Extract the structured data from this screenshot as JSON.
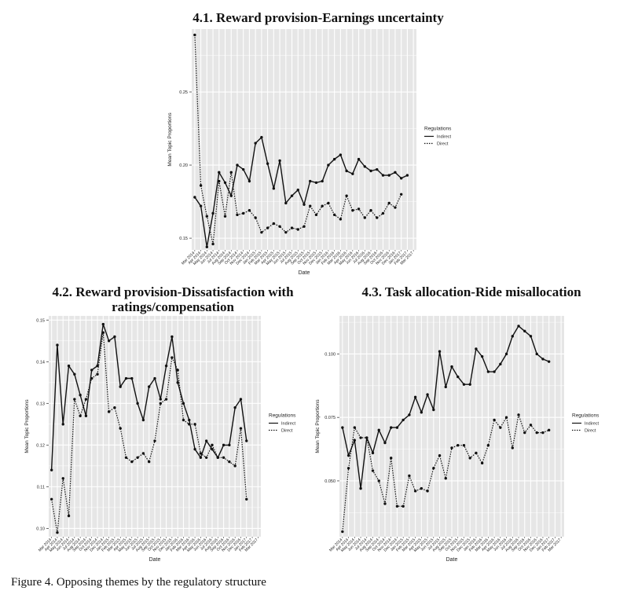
{
  "figure": {
    "caption": "Figure 4. Opposing themes by the regulatory structure"
  },
  "panels": [
    {
      "title_line1": "4.1. Reward provision-Earnings uncertainty",
      "title_line2": ""
    },
    {
      "title_line1": "4.2. Reward provision-Dissatisfaction with",
      "title_line2": "ratings/compensation"
    },
    {
      "title_line1": "4.3. Task allocation-Ride misallocation",
      "title_line2": ""
    }
  ],
  "colors": {
    "panel_bg": "#e6e6e6",
    "grid": "#ffffff",
    "line": "#111111",
    "text": "#222222"
  },
  "chart_data": [
    {
      "type": "line",
      "title": "4.1. Reward provision-Earnings uncertainty",
      "xlabel": "Date",
      "ylabel": "Mean Topic Proportions",
      "legend_title": "Regulations",
      "legend_position": "right",
      "grid": true,
      "ylim": [
        0.142,
        0.293
      ],
      "yticks": [
        0.15,
        0.2,
        0.25
      ],
      "ytick_labels": [
        "0.15",
        "0.20",
        "0.25"
      ],
      "categories": [
        "Mar 2014",
        "Apr 2014",
        "May 2014",
        "Jun 2014",
        "Jul 2014",
        "Aug 2014",
        "Sep 2014",
        "Oct 2014",
        "Nov 2014",
        "Dec 2014",
        "Jan 2015",
        "Feb 2015",
        "Mar 2015",
        "Apr 2015",
        "May 2015",
        "Jun 2015",
        "Jul 2015",
        "Aug 2015",
        "Sep 2015",
        "Oct 2015",
        "Nov 2015",
        "Dec 2015",
        "Jan 2016",
        "Feb 2016",
        "Mar 2016",
        "Apr 2016",
        "May 2016",
        "Jun 2016",
        "Jul 2016",
        "Aug 2016",
        "Sep 2016",
        "Oct 2016",
        "Nov 2016",
        "Dec 2016",
        "Jan 2017",
        "Feb 2017",
        "Mar 2017"
      ],
      "series": [
        {
          "name": "Indirect",
          "style": "solid",
          "values": [
            0.178,
            0.172,
            0.144,
            0.167,
            0.195,
            0.188,
            0.179,
            0.2,
            0.197,
            0.189,
            0.215,
            0.219,
            0.201,
            0.184,
            0.203,
            0.174,
            0.179,
            0.183,
            0.173,
            0.189,
            0.188,
            0.189,
            0.2,
            0.204,
            0.207,
            0.196,
            0.194,
            0.204,
            0.199,
            0.196,
            0.197,
            0.193,
            0.193,
            0.195,
            0.191,
            0.193,
            null
          ]
        },
        {
          "name": "Direct",
          "style": "dotted",
          "values": [
            0.289,
            0.186,
            0.165,
            0.146,
            0.189,
            0.165,
            0.195,
            0.166,
            0.167,
            0.169,
            0.164,
            0.154,
            0.157,
            0.16,
            0.158,
            0.154,
            0.157,
            0.156,
            0.158,
            0.172,
            0.166,
            0.172,
            0.174,
            0.166,
            0.163,
            0.179,
            0.169,
            0.17,
            0.164,
            0.169,
            0.164,
            0.167,
            0.174,
            0.171,
            0.18,
            null,
            null
          ]
        }
      ]
    },
    {
      "type": "line",
      "title": "4.2. Reward provision-Dissatisfaction with ratings/compensation",
      "xlabel": "Date",
      "ylabel": "Mean Topic Proportions",
      "legend_title": "Regulations",
      "legend_position": "right",
      "grid": true,
      "ylim": [
        0.098,
        0.151
      ],
      "yticks": [
        0.1,
        0.11,
        0.12,
        0.13,
        0.14,
        0.15
      ],
      "ytick_labels": [
        "0.10",
        "0.11",
        "0.12",
        "0.13",
        "0.14",
        "0.15"
      ],
      "categories": [
        "Mar 2014",
        "Apr 2014",
        "May 2014",
        "Jun 2014",
        "Jul 2014",
        "Aug 2014",
        "Sep 2014",
        "Oct 2014",
        "Nov 2014",
        "Dec 2014",
        "Jan 2015",
        "Feb 2015",
        "Mar 2015",
        "Apr 2015",
        "May 2015",
        "Jun 2015",
        "Jul 2015",
        "Aug 2015",
        "Sep 2015",
        "Oct 2015",
        "Nov 2015",
        "Dec 2015",
        "Jan 2016",
        "Feb 2016",
        "Mar 2016",
        "Apr 2016",
        "May 2016",
        "Jun 2016",
        "Jul 2016",
        "Aug 2016",
        "Sep 2016",
        "Oct 2016",
        "Nov 2016",
        "Dec 2016",
        "Jan 2017",
        "Feb 2017",
        "Mar 2017"
      ],
      "series": [
        {
          "name": "Indirect",
          "style": "solid",
          "values": [
            0.114,
            0.144,
            0.125,
            0.139,
            0.137,
            0.132,
            0.127,
            0.138,
            0.139,
            0.149,
            0.145,
            0.146,
            0.134,
            0.136,
            0.136,
            0.13,
            0.126,
            0.134,
            0.136,
            0.131,
            0.139,
            0.146,
            0.135,
            0.13,
            0.126,
            0.119,
            0.117,
            0.121,
            0.119,
            0.117,
            0.12,
            0.12,
            0.129,
            0.131,
            0.121,
            null,
            null
          ]
        },
        {
          "name": "Direct",
          "style": "dotted",
          "values": [
            0.107,
            0.099,
            0.112,
            0.103,
            0.131,
            0.127,
            0.131,
            0.136,
            0.137,
            0.147,
            0.128,
            0.129,
            0.124,
            0.117,
            0.116,
            0.117,
            0.118,
            0.116,
            0.121,
            0.13,
            0.131,
            0.141,
            0.138,
            0.126,
            0.125,
            0.125,
            0.118,
            0.117,
            0.12,
            0.117,
            0.117,
            0.116,
            0.115,
            0.124,
            0.107,
            null,
            null
          ]
        }
      ]
    },
    {
      "type": "line",
      "title": "4.3. Task allocation-Ride misallocation",
      "xlabel": "Date",
      "ylabel": "Mean Topic Proportions",
      "legend_title": "Regulations",
      "legend_position": "right",
      "grid": true,
      "ylim": [
        0.028,
        0.115
      ],
      "yticks": [
        0.05,
        0.075,
        0.1
      ],
      "ytick_labels": [
        "0.050",
        "0.075",
        "0.100"
      ],
      "categories": [
        "Mar 2014",
        "Apr 2014",
        "May 2014",
        "Jun 2014",
        "Jul 2014",
        "Aug 2014",
        "Sep 2014",
        "Oct 2014",
        "Nov 2014",
        "Dec 2014",
        "Jan 2015",
        "Feb 2015",
        "Mar 2015",
        "Apr 2015",
        "May 2015",
        "Jun 2015",
        "Jul 2015",
        "Aug 2015",
        "Sep 2015",
        "Oct 2015",
        "Nov 2015",
        "Dec 2015",
        "Jan 2016",
        "Feb 2016",
        "Mar 2016",
        "Apr 2016",
        "May 2016",
        "Jun 2016",
        "Jul 2016",
        "Aug 2016",
        "Sep 2016",
        "Oct 2016",
        "Nov 2016",
        "Dec 2016",
        "Jan 2017",
        "Feb 2017",
        "Mar 2017"
      ],
      "series": [
        {
          "name": "Indirect",
          "style": "solid",
          "values": [
            0.071,
            0.06,
            0.066,
            0.047,
            0.067,
            0.061,
            0.07,
            0.065,
            0.071,
            0.071,
            0.074,
            0.076,
            0.083,
            0.077,
            0.084,
            0.078,
            0.101,
            0.087,
            0.095,
            0.091,
            0.088,
            0.088,
            0.102,
            0.099,
            0.093,
            0.093,
            0.096,
            0.1,
            0.107,
            0.111,
            0.109,
            0.107,
            0.1,
            0.098,
            0.097,
            null,
            null
          ]
        },
        {
          "name": "Direct",
          "style": "dotted",
          "values": [
            0.03,
            0.055,
            0.071,
            0.067,
            0.067,
            0.054,
            0.05,
            0.041,
            0.059,
            0.04,
            0.04,
            0.052,
            0.046,
            0.047,
            0.046,
            0.055,
            0.06,
            0.051,
            0.063,
            0.064,
            0.064,
            0.059,
            0.061,
            0.057,
            0.064,
            0.074,
            0.071,
            0.075,
            0.063,
            0.076,
            0.069,
            0.072,
            0.069,
            0.069,
            0.07,
            null,
            null
          ]
        }
      ]
    }
  ]
}
